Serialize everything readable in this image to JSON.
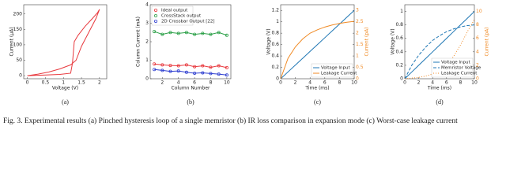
{
  "chart_data": [
    {
      "type": "line",
      "label": "(a)",
      "xlabel": "Voltage (V)",
      "ylabel": "Current (µA)",
      "xlim": [
        -0.1,
        2.2
      ],
      "xticks": [
        0,
        0.5,
        1,
        1.5,
        2
      ],
      "ylim": [
        -10,
        230
      ],
      "yticks": [
        0,
        50,
        100,
        150,
        200
      ],
      "series": [
        {
          "name": null,
          "color": "#e8383d",
          "x": [
            0,
            0.3,
            0.6,
            0.9,
            1.2,
            1.35,
            1.5,
            1.7,
            1.9,
            2.0,
            1.95,
            1.8,
            1.6,
            1.4,
            1.3,
            1.25,
            1.2,
            0.9,
            0.5,
            0.2,
            0
          ],
          "values": [
            0,
            5,
            12,
            22,
            35,
            50,
            95,
            140,
            185,
            215,
            205,
            185,
            160,
            130,
            110,
            40,
            8,
            4,
            2,
            1,
            0
          ]
        }
      ]
    },
    {
      "type": "line",
      "label": "(b)",
      "xlabel": "Column Number",
      "ylabel": "Column Current (mA)",
      "xlim": [
        0.5,
        10.5
      ],
      "xticks": [
        2,
        4,
        6,
        8,
        10
      ],
      "ylim": [
        0,
        4
      ],
      "yticks": [
        0,
        1,
        2,
        3,
        4
      ],
      "legend": "upper left",
      "markers": true,
      "series": [
        {
          "name": "Ideal output",
          "color": "#e8383d",
          "x": [
            1,
            2,
            3,
            4,
            5,
            6,
            7,
            8,
            9,
            10
          ],
          "values": [
            0.8,
            0.75,
            0.72,
            0.7,
            0.75,
            0.65,
            0.7,
            0.62,
            0.7,
            0.6
          ]
        },
        {
          "name": "CrossStack output",
          "color": "#2ca048",
          "x": [
            1,
            2,
            3,
            4,
            5,
            6,
            7,
            8,
            9,
            10
          ],
          "values": [
            2.55,
            2.4,
            2.5,
            2.45,
            2.5,
            2.4,
            2.45,
            2.4,
            2.5,
            2.35
          ]
        },
        {
          "name": "2D Crossbar Output [22]",
          "color": "#2f3fd0",
          "x": [
            1,
            2,
            3,
            4,
            5,
            6,
            7,
            8,
            9,
            10
          ],
          "values": [
            0.5,
            0.45,
            0.4,
            0.42,
            0.35,
            0.3,
            0.32,
            0.28,
            0.25,
            0.2
          ]
        }
      ]
    },
    {
      "type": "line",
      "label": "(c)",
      "xlabel": "Time (ms)",
      "ylabel": "Voltage (V)",
      "y2label": "Current (pA)",
      "xlim": [
        0,
        10
      ],
      "xticks": [
        0,
        2,
        4,
        6,
        8,
        10
      ],
      "ylim": [
        0,
        1.3
      ],
      "yticks": [
        0,
        0.2,
        0.4,
        0.6,
        0.8,
        1,
        1.2
      ],
      "y2lim": [
        0,
        3.25
      ],
      "y2ticks": [
        0,
        0.5,
        1,
        1.5,
        2,
        2.5,
        3
      ],
      "legend": "lower right",
      "series": [
        {
          "name": "Voltage Input",
          "color": "#1f77b4",
          "x": [
            0,
            1,
            2,
            3,
            4,
            5,
            6,
            7,
            8,
            9,
            10
          ],
          "values": [
            0,
            0.12,
            0.24,
            0.36,
            0.48,
            0.6,
            0.72,
            0.84,
            0.96,
            1.08,
            1.2
          ]
        },
        {
          "name": "Leakage Current",
          "color": "#f08a24",
          "axis": "y2",
          "x": [
            0,
            1,
            2,
            3,
            4,
            5,
            6,
            7,
            8,
            9,
            10
          ],
          "values": [
            0,
            0.9,
            1.4,
            1.75,
            2.0,
            2.15,
            2.27,
            2.36,
            2.43,
            2.48,
            2.52
          ]
        }
      ]
    },
    {
      "type": "line",
      "label": "(d)",
      "xlabel": "Time (ms)",
      "ylabel": "Voltage (V)",
      "y2label": "Current (pA)",
      "xlim": [
        0,
        10
      ],
      "xticks": [
        0,
        2,
        4,
        6,
        8,
        10
      ],
      "ylim": [
        0,
        1.1
      ],
      "yticks": [
        0,
        0.2,
        0.4,
        0.6,
        0.8,
        1
      ],
      "y2lim": [
        0,
        11
      ],
      "y2ticks": [
        0,
        2,
        4,
        6,
        8,
        10
      ],
      "legend": "lower right",
      "series": [
        {
          "name": "Voltage Input",
          "color": "#1f77b4",
          "x": [
            0,
            1,
            2,
            3,
            4,
            5,
            6,
            7,
            8,
            9,
            10
          ],
          "values": [
            0,
            0.1,
            0.2,
            0.3,
            0.4,
            0.5,
            0.6,
            0.7,
            0.8,
            0.9,
            1.0
          ]
        },
        {
          "name": "Memristor Voltage",
          "color": "#1f77b4",
          "dash": "4,2",
          "x": [
            0,
            1,
            2,
            3,
            4,
            5,
            6,
            7,
            8,
            9,
            10
          ],
          "values": [
            0,
            0.2,
            0.35,
            0.47,
            0.57,
            0.64,
            0.7,
            0.74,
            0.77,
            0.79,
            0.8
          ]
        },
        {
          "name": "Leakage Current",
          "color": "#f08a24",
          "dash": "1,2",
          "axis": "y2",
          "x": [
            0,
            1,
            2,
            3,
            4,
            5,
            6,
            7,
            8,
            9,
            10
          ],
          "values": [
            0,
            0.1,
            0.2,
            0.4,
            0.7,
            1.2,
            2,
            3.3,
            5,
            7,
            8.8
          ]
        }
      ]
    }
  ],
  "caption": [
    "Fig. 3.   Experimental results (a) Pinched hysteresis loop of a single memristor (b) IR loss comparison in expansion mode (c) Worst-case leakage current"
  ]
}
